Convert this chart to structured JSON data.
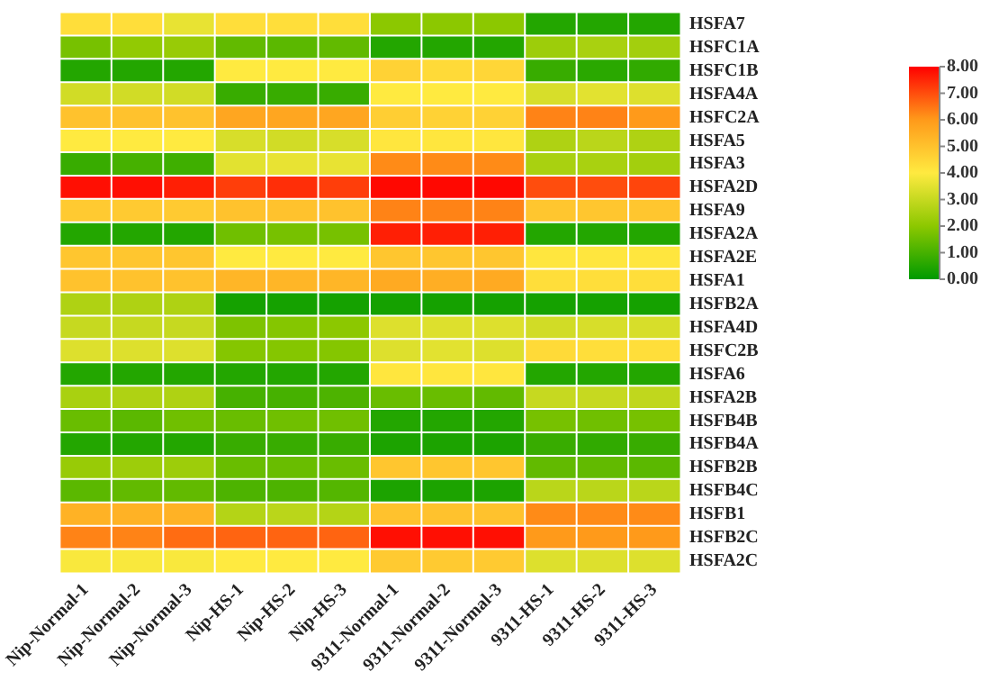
{
  "chart_data": {
    "type": "heatmap",
    "categories": [
      "Nip-Normal-1",
      "Nip-Normal-2",
      "Nip-Normal-3",
      "Nip-HS-1",
      "Nip-HS-2",
      "Nip-HS-3",
      "9311-Normal-1",
      "9311-Normal-2",
      "9311-Normal-3",
      "9311-HS-1",
      "9311-HS-2",
      "9311-HS-3"
    ],
    "y_categories": [
      "HSFA7",
      "HSFC1A",
      "HSFC1B",
      "HSFA4A",
      "HSFC2A",
      "HSFA5",
      "HSFA3",
      "HSFA2D",
      "HSFA9",
      "HSFA2A",
      "HSFA2E",
      "HSFA1",
      "HSFB2A",
      "HSFA4D",
      "HSFC2B",
      "HSFA6",
      "HSFA2B",
      "HSFB4B",
      "HSFB4A",
      "HSFB2B",
      "HSFB4C",
      "HSFB1",
      "HSFB2C",
      "HSFA2C"
    ],
    "cells": [
      [
        4.3,
        4.3,
        3.6,
        4.3,
        4.3,
        4.3,
        2.0,
        2.0,
        2.0,
        0.5,
        0.5,
        0.5
      ],
      [
        1.7,
        2.1,
        2.2,
        1.4,
        1.3,
        1.4,
        0.5,
        0.5,
        0.5,
        2.3,
        2.5,
        2.4
      ],
      [
        0.5,
        0.5,
        0.5,
        4.0,
        4.0,
        4.0,
        4.6,
        4.4,
        4.5,
        0.8,
        0.6,
        0.7
      ],
      [
        3.2,
        3.2,
        3.2,
        0.8,
        0.8,
        0.8,
        4.0,
        4.0,
        4.0,
        3.3,
        3.5,
        3.4
      ],
      [
        5.0,
        5.0,
        5.0,
        5.7,
        5.7,
        5.7,
        4.7,
        4.6,
        4.6,
        6.3,
        6.3,
        6.0
      ],
      [
        4.0,
        4.0,
        4.0,
        3.3,
        3.2,
        3.3,
        4.1,
        4.1,
        4.1,
        2.6,
        2.8,
        2.6
      ],
      [
        0.8,
        1.0,
        0.9,
        3.5,
        3.6,
        3.6,
        6.2,
        6.2,
        6.2,
        2.5,
        2.5,
        2.4
      ],
      [
        7.8,
        7.8,
        7.6,
        7.2,
        7.4,
        7.2,
        7.9,
        7.9,
        7.9,
        7.0,
        7.0,
        7.1
      ],
      [
        4.8,
        4.8,
        4.8,
        5.0,
        5.0,
        5.0,
        6.3,
        6.3,
        6.3,
        4.9,
        4.9,
        4.9
      ],
      [
        0.5,
        0.5,
        0.5,
        1.6,
        1.7,
        1.7,
        7.6,
        7.6,
        7.6,
        0.5,
        0.5,
        0.5
      ],
      [
        4.9,
        4.9,
        4.9,
        4.0,
        4.0,
        4.0,
        4.9,
        4.9,
        4.9,
        4.1,
        4.1,
        4.1
      ],
      [
        5.0,
        5.0,
        5.0,
        5.3,
        5.3,
        5.3,
        5.6,
        5.5,
        5.6,
        4.3,
        4.3,
        4.3
      ],
      [
        2.6,
        2.6,
        2.6,
        0.3,
        0.3,
        0.3,
        0.3,
        0.3,
        0.3,
        0.3,
        0.3,
        0.3
      ],
      [
        3.0,
        3.0,
        3.0,
        1.8,
        1.9,
        2.0,
        3.4,
        3.4,
        3.4,
        3.2,
        3.3,
        3.3
      ],
      [
        3.4,
        3.4,
        3.4,
        1.9,
        1.9,
        1.9,
        3.4,
        3.5,
        3.4,
        4.4,
        4.3,
        4.3
      ],
      [
        0.5,
        0.5,
        0.5,
        0.5,
        0.5,
        0.5,
        4.1,
        4.1,
        4.1,
        0.5,
        0.5,
        0.5
      ],
      [
        2.5,
        2.6,
        2.6,
        1.0,
        1.0,
        1.1,
        1.5,
        1.5,
        1.4,
        3.0,
        3.0,
        2.9
      ],
      [
        1.5,
        1.3,
        1.6,
        1.5,
        1.6,
        1.6,
        0.5,
        0.5,
        0.5,
        1.7,
        1.6,
        1.7
      ],
      [
        0.5,
        0.5,
        0.5,
        0.8,
        0.8,
        0.8,
        0.4,
        0.4,
        0.4,
        0.8,
        0.7,
        0.8
      ],
      [
        2.2,
        2.3,
        2.3,
        1.5,
        1.5,
        1.5,
        4.9,
        4.9,
        4.9,
        1.4,
        1.4,
        1.3
      ],
      [
        1.3,
        1.4,
        1.4,
        1.1,
        1.1,
        1.2,
        0.4,
        0.4,
        0.4,
        2.8,
        2.8,
        2.8
      ],
      [
        5.4,
        5.4,
        5.4,
        2.7,
        2.8,
        2.7,
        5.0,
        5.0,
        5.0,
        6.2,
        6.2,
        6.2
      ],
      [
        6.3,
        6.3,
        6.6,
        6.7,
        6.7,
        6.7,
        7.8,
        7.8,
        7.8,
        6.0,
        6.0,
        6.0
      ],
      [
        3.9,
        3.9,
        3.9,
        4.0,
        4.0,
        4.0,
        4.8,
        4.8,
        4.8,
        3.4,
        3.4,
        3.4
      ]
    ],
    "clim": [
      0,
      8
    ],
    "cticks": [
      {
        "value": 0,
        "label": "0.00"
      },
      {
        "value": 1,
        "label": "1.00"
      },
      {
        "value": 2,
        "label": "2.00"
      },
      {
        "value": 3,
        "label": "3.00"
      },
      {
        "value": 4,
        "label": "4.00"
      },
      {
        "value": 5,
        "label": "5.00"
      },
      {
        "value": 6,
        "label": "6.00"
      },
      {
        "value": 7,
        "label": "7.00"
      },
      {
        "value": 8,
        "label": "8.00"
      }
    ]
  }
}
